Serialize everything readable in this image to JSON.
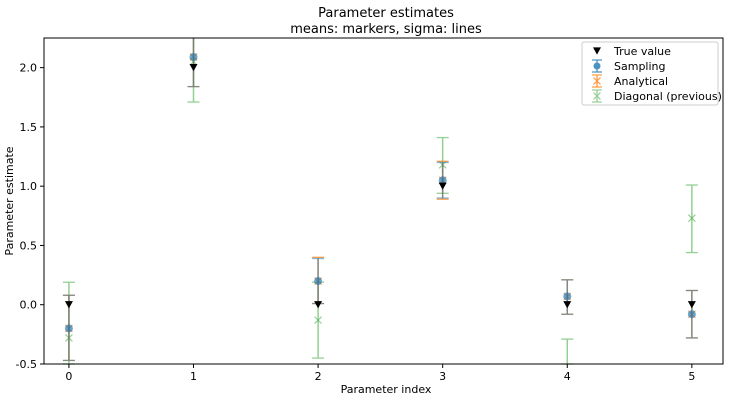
{
  "chart_data": {
    "type": "scatter",
    "title": "Parameter estimates",
    "subtitle": "means: markers, sigma: lines",
    "xlabel": "Parameter index",
    "ylabel": "Parameter estimate",
    "xlim": [
      -0.2,
      5.25
    ],
    "ylim": [
      -0.5,
      2.25
    ],
    "x_ticks": [
      "0",
      "1",
      "2",
      "3",
      "4",
      "5"
    ],
    "y_ticks": [
      "-0.5",
      "0.0",
      "0.5",
      "1.0",
      "1.5",
      "2.0"
    ],
    "grid": false,
    "legend_position": "top-right",
    "series": [
      {
        "name": "True value",
        "color": "#000000",
        "marker": "triangle-down",
        "x": [
          0,
          1,
          2,
          3,
          4,
          5
        ],
        "y": [
          0.0,
          2.0,
          0.0,
          1.0,
          0.0,
          0.0
        ]
      },
      {
        "name": "Sampling",
        "color": "#1f77b4",
        "marker": "circle",
        "x": [
          0,
          1,
          2,
          3,
          4,
          5
        ],
        "y": [
          -0.2,
          2.09,
          0.2,
          1.05,
          0.07,
          -0.08
        ],
        "err_low": [
          -0.47,
          1.84,
          0.01,
          0.9,
          -0.08,
          -0.28
        ],
        "err_high": [
          0.08,
          2.3,
          0.39,
          1.2,
          0.21,
          0.12
        ]
      },
      {
        "name": "Analytical",
        "color": "#ff7f0e",
        "marker": "x",
        "x": [
          0,
          1,
          2,
          3,
          4,
          5
        ],
        "y": [
          -0.2,
          2.09,
          0.2,
          1.05,
          0.07,
          -0.08
        ],
        "err_low": [
          -0.47,
          1.84,
          0.01,
          0.89,
          -0.08,
          -0.28
        ],
        "err_high": [
          0.08,
          2.3,
          0.4,
          1.21,
          0.21,
          0.12
        ]
      },
      {
        "name": "Diagonal (previous)",
        "color": "#2ca02c",
        "marker": "x",
        "x": [
          0,
          1,
          2,
          3,
          4,
          5
        ],
        "y": [
          -0.28,
          2.05,
          -0.13,
          1.18,
          -0.55,
          0.73
        ],
        "err_low": [
          -0.5,
          1.71,
          -0.45,
          0.94,
          -0.5,
          0.44
        ],
        "err_high": [
          0.19,
          2.3,
          0.19,
          1.41,
          -0.29,
          1.01
        ]
      }
    ]
  }
}
